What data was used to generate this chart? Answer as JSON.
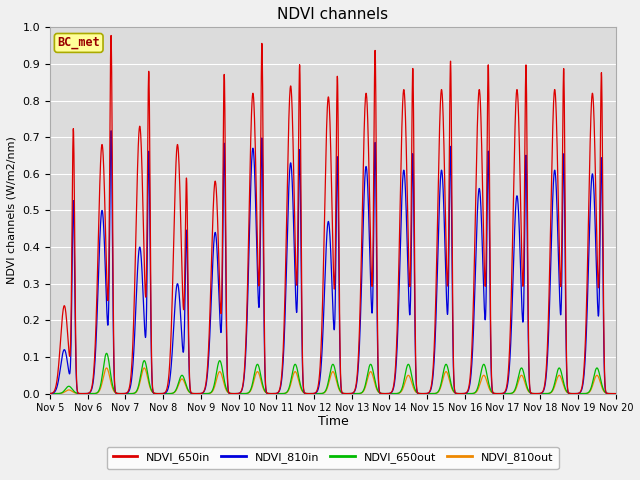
{
  "title": "NDVI channels",
  "ylabel": "NDVI channels (W/m2/nm)",
  "xlabel": "Time",
  "ylim": [
    0.0,
    1.0
  ],
  "plot_bg": "#dcdcdc",
  "fig_bg": "#f0f0f0",
  "legend_label": "BC_met",
  "series": {
    "NDVI_650in": {
      "color": "#dd0000"
    },
    "NDVI_810in": {
      "color": "#0000dd"
    },
    "NDVI_650out": {
      "color": "#00bb00"
    },
    "NDVI_810out": {
      "color": "#ee8800"
    }
  },
  "xtick_labels": [
    "Nov 5",
    "Nov 6",
    "Nov 7",
    "Nov 8",
    "Nov 9",
    "Nov 10",
    "Nov 11",
    "Nov 12",
    "Nov 13",
    "Nov 14",
    "Nov 15",
    "Nov 16",
    "Nov 17",
    "Nov 18",
    "Nov 19",
    "Nov 20"
  ],
  "n_days": 15,
  "peaks_650in": [
    0.71,
    0.94,
    0.84,
    0.55,
    0.84,
    0.91,
    0.85,
    0.82,
    0.89,
    0.84,
    0.86,
    0.85,
    0.85,
    0.84,
    0.83
  ],
  "peaks_650in_2": [
    0.24,
    0.68,
    0.73,
    0.68,
    0.58,
    0.82,
    0.84,
    0.81,
    0.82,
    0.83,
    0.83,
    0.83,
    0.83,
    0.83,
    0.82
  ],
  "peaks_810in": [
    0.52,
    0.69,
    0.64,
    0.43,
    0.66,
    0.66,
    0.63,
    0.62,
    0.65,
    0.62,
    0.64,
    0.63,
    0.62,
    0.62,
    0.61
  ],
  "peaks_810in_2": [
    0.12,
    0.5,
    0.4,
    0.3,
    0.44,
    0.67,
    0.63,
    0.47,
    0.62,
    0.61,
    0.61,
    0.56,
    0.54,
    0.61,
    0.6
  ],
  "peaks_650out": [
    0.02,
    0.11,
    0.09,
    0.05,
    0.09,
    0.08,
    0.08,
    0.08,
    0.08,
    0.08,
    0.08,
    0.08,
    0.07,
    0.07,
    0.07
  ],
  "peaks_810out": [
    0.01,
    0.07,
    0.07,
    0.04,
    0.06,
    0.06,
    0.06,
    0.06,
    0.06,
    0.05,
    0.06,
    0.05,
    0.05,
    0.05,
    0.05
  ]
}
